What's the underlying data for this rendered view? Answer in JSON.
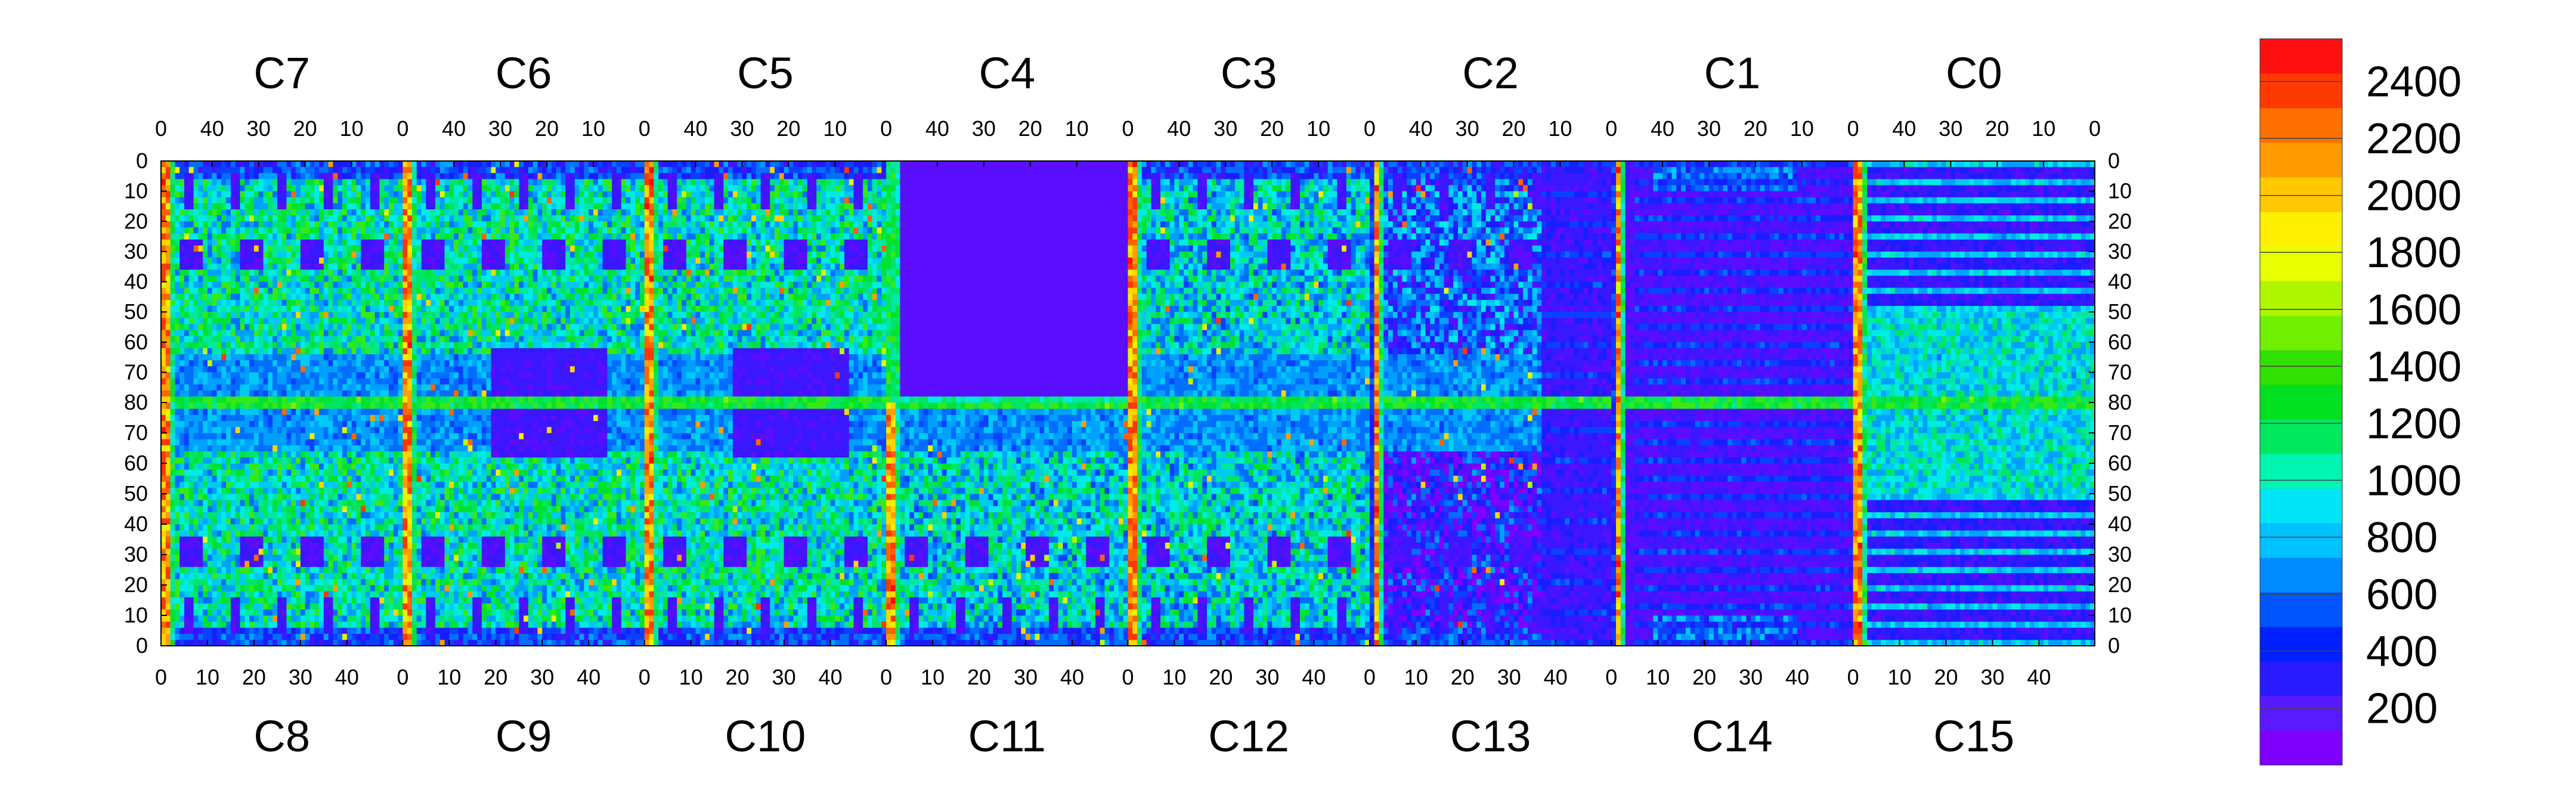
{
  "chart_data": {
    "type": "heatmap",
    "title": "",
    "xlabel": "",
    "ylabel": "",
    "top_chips": [
      "C7",
      "C6",
      "C5",
      "C4",
      "C3",
      "C2",
      "C1",
      "C0"
    ],
    "bottom_chips": [
      "C8",
      "C9",
      "C10",
      "C11",
      "C12",
      "C13",
      "C14",
      "C15"
    ],
    "top_x_ticks": [
      "40",
      "30",
      "20",
      "10",
      "0"
    ],
    "bottom_x_ticks": [
      "0",
      "10",
      "20",
      "30",
      "40"
    ],
    "y_ticks_top_half": [
      "0",
      "10",
      "20",
      "30",
      "40",
      "50",
      "60",
      "70",
      "80"
    ],
    "y_ticks_bottom_half": [
      "70",
      "60",
      "50",
      "40",
      "30",
      "20",
      "10",
      "0"
    ],
    "columns_per_chip": 52,
    "rows_per_chip": 80,
    "zlim": [
      0,
      2550
    ],
    "colorbar_ticks": [
      "200",
      "400",
      "600",
      "800",
      "1000",
      "1200",
      "1400",
      "1600",
      "1800",
      "2000",
      "2200",
      "2400"
    ],
    "colorbar_bands": [
      "#7f00ff",
      "#5a1aff",
      "#2a1aff",
      "#0020ff",
      "#0055ff",
      "#008cff",
      "#00c2ff",
      "#00e5f5",
      "#00f5b0",
      "#00e860",
      "#00e020",
      "#30e000",
      "#70f000",
      "#b0f500",
      "#e8ff00",
      "#fff000",
      "#ffc800",
      "#ff9a00",
      "#ff7000",
      "#ff3a00",
      "#ff1010"
    ],
    "dominant_level_per_chip": {
      "C7": 1000,
      "C6": 1000,
      "C5": 1000,
      "C4": 100,
      "C3": 900,
      "C2": 500,
      "C1": 150,
      "C0": 700,
      "C8": 1000,
      "C9": 1000,
      "C10": 1000,
      "C11": 900,
      "C12": 900,
      "C13": 200,
      "C14": 150,
      "C15": 250
    }
  }
}
